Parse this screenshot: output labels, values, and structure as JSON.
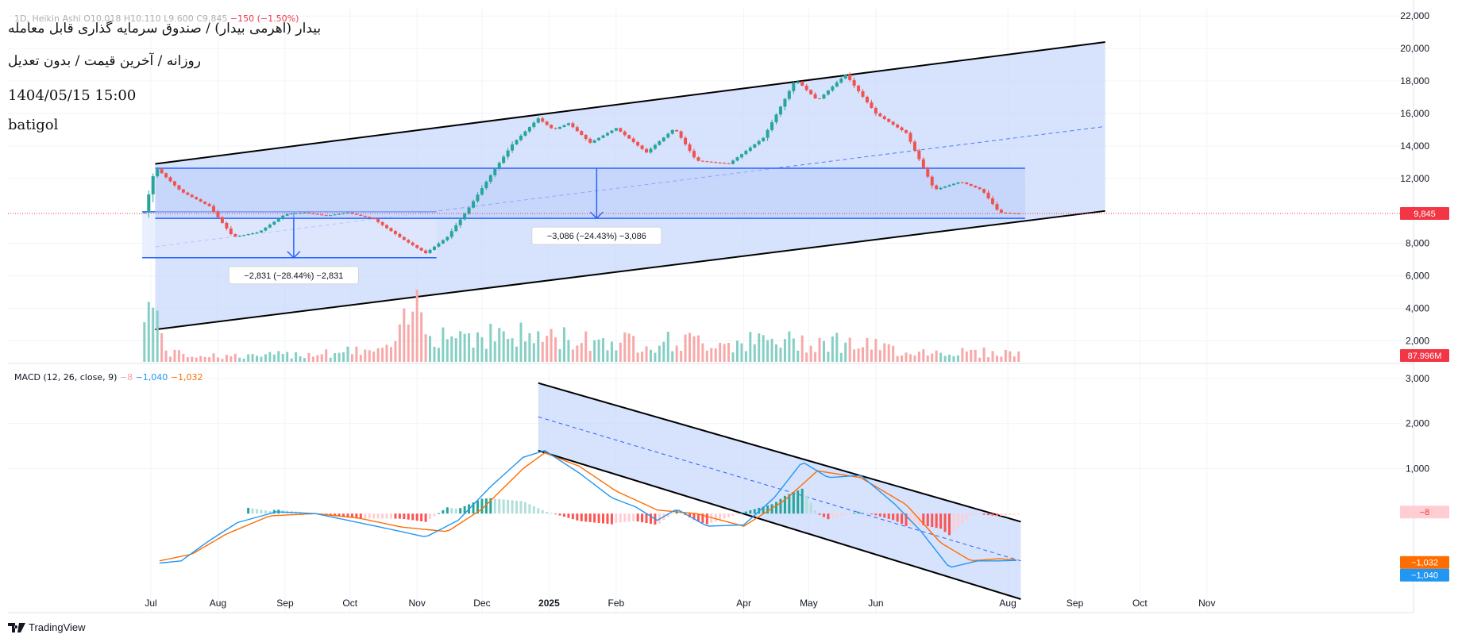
{
  "header": {
    "instrument_name": "بیدار (اهرمی بیدار) / صندوق سرمایه گذاری قابل معامله",
    "subtitle": "روزانه / آخرین قیمت / بدون تعدیل",
    "datetime": "1404/05/15 15:00",
    "username": "batigol",
    "ohlc_legend": "1D, Heikin Ashi  O10.018  H10.110  L9.600  C9.845",
    "change_text": "−150 (−1.50%)"
  },
  "macd_legend": {
    "label": "MACD (12, 26, close, 9)",
    "histogram_value": "−8",
    "macd_value": "−1,040",
    "signal_value": "−1,032"
  },
  "branding": {
    "name": "TradingView"
  },
  "colors": {
    "up": "#26a69a",
    "down": "#ef5350",
    "vol_up": "#86cfc4",
    "vol_down": "#f7a9a9",
    "macd": "#2196f3",
    "signal": "#ff6d00",
    "channel_fill": "#c9d8fb",
    "measure": "#2962ff",
    "price_label": "#f23645"
  },
  "chart_data": [
    {
      "type": "candlestick",
      "style": "Heikin Ashi",
      "timeframe": "1D",
      "x_tick_labels": [
        "Jul",
        "Aug",
        "Sep",
        "Oct",
        "Nov",
        "Dec",
        "2025",
        "Feb",
        "Apr",
        "May",
        "Jun",
        "Aug",
        "Sep",
        "Oct",
        "Nov"
      ],
      "y_tick_labels": [
        "22,000",
        "20,000",
        "18,000",
        "16,000",
        "14,000",
        "12,000",
        "8,000",
        "6,000",
        "4,000",
        "2,000"
      ],
      "ylim": [
        1000,
        22500
      ],
      "last_price": 9845,
      "last_price_label": "9,845",
      "volume_label": "87.996M",
      "grid": true,
      "price_path": [
        [
          "2024-06-28",
          9900
        ],
        [
          "2024-07-03",
          12700
        ],
        [
          "2024-07-15",
          11200
        ],
        [
          "2024-07-28",
          10300
        ],
        [
          "2024-08-08",
          8400
        ],
        [
          "2024-08-20",
          8700
        ],
        [
          "2024-09-01",
          9800
        ],
        [
          "2024-09-10",
          9900
        ],
        [
          "2024-09-20",
          9700
        ],
        [
          "2024-09-30",
          9900
        ],
        [
          "2024-10-12",
          9500
        ],
        [
          "2024-10-25",
          8300
        ],
        [
          "2024-11-05",
          7400
        ],
        [
          "2024-11-15",
          8400
        ],
        [
          "2024-11-25",
          10200
        ],
        [
          "2024-12-05",
          12200
        ],
        [
          "2024-12-15",
          14100
        ],
        [
          "2024-12-27",
          15700
        ],
        [
          "2025-01-03",
          15000
        ],
        [
          "2025-01-10",
          15400
        ],
        [
          "2025-01-20",
          14200
        ],
        [
          "2025-02-01",
          15100
        ],
        [
          "2025-02-15",
          13600
        ],
        [
          "2025-02-28",
          15100
        ],
        [
          "2025-03-10",
          13100
        ],
        [
          "2025-03-25",
          12900
        ],
        [
          "2025-04-10",
          14500
        ],
        [
          "2025-04-25",
          18100
        ],
        [
          "2025-05-05",
          16800
        ],
        [
          "2025-05-18",
          18400
        ],
        [
          "2025-06-01",
          16000
        ],
        [
          "2025-06-15",
          14800
        ],
        [
          "2025-06-28",
          11300
        ],
        [
          "2025-07-10",
          11800
        ],
        [
          "2025-07-20",
          11300
        ],
        [
          "2025-07-28",
          9900
        ],
        [
          "2025-08-05",
          9845
        ]
      ],
      "annotations": {
        "channel_upper": [
          [
            "2024-07-03",
            12900
          ],
          [
            "2025-09-15",
            20400
          ]
        ],
        "channel_lower": [
          [
            "2024-07-03",
            2700
          ],
          [
            "2025-09-15",
            10000
          ]
        ],
        "channel_midline": [
          [
            "2024-07-03",
            7800
          ],
          [
            "2025-09-15",
            15200
          ]
        ],
        "measure_1": {
          "start_price": 9950,
          "end_price": 7119,
          "text": "−2,831 (−28.44%) −2,831"
        },
        "measure_2": {
          "start_price": 12631,
          "end_price": 9545,
          "text": "−3,086 (−24.43%) −3,086"
        }
      }
    },
    {
      "type": "bar",
      "series": [
        {
          "name": "Volume"
        }
      ],
      "volume_path": [
        [
          "2024-06-28",
          5200
        ],
        [
          "2024-07-10",
          600
        ],
        [
          "2024-08-15",
          400
        ],
        [
          "2024-09-20",
          700
        ],
        [
          "2024-10-20",
          900
        ],
        [
          "2024-11-01",
          4300
        ],
        [
          "2024-11-10",
          2200
        ],
        [
          "2024-12-10",
          2000
        ],
        [
          "2025-01-01",
          1800
        ],
        [
          "2025-02-10",
          1500
        ],
        [
          "2025-03-20",
          1500
        ],
        [
          "2025-04-20",
          1500
        ],
        [
          "2025-05-10",
          1600
        ],
        [
          "2025-06-15",
          800
        ],
        [
          "2025-07-20",
          700
        ],
        [
          "2025-08-05",
          650
        ]
      ]
    },
    {
      "type": "line",
      "y_tick_labels": [
        "3,000",
        "2,000",
        "1,000"
      ],
      "ylim": [
        -2200,
        3300
      ],
      "series": [
        {
          "name": "MACD",
          "path": [
            [
              "2024-07-05",
              -1100
            ],
            [
              "2024-07-15",
              -1050
            ],
            [
              "2024-07-28",
              -600
            ],
            [
              "2024-08-10",
              -200
            ],
            [
              "2024-08-28",
              40
            ],
            [
              "2024-09-15",
              0
            ],
            [
              "2024-09-30",
              -150
            ],
            [
              "2024-10-20",
              -350
            ],
            [
              "2024-11-05",
              -520
            ],
            [
              "2024-11-20",
              -150
            ],
            [
              "2024-12-05",
              600
            ],
            [
              "2024-12-20",
              1250
            ],
            [
              "2024-12-30",
              1400
            ],
            [
              "2025-01-15",
              900
            ],
            [
              "2025-01-30",
              350
            ],
            [
              "2025-02-10",
              150
            ],
            [
              "2025-02-20",
              -150
            ],
            [
              "2025-03-01",
              100
            ],
            [
              "2025-03-15",
              -280
            ],
            [
              "2025-04-01",
              -250
            ],
            [
              "2025-04-15",
              350
            ],
            [
              "2025-04-28",
              1150
            ],
            [
              "2025-05-10",
              800
            ],
            [
              "2025-05-25",
              850
            ],
            [
              "2025-06-10",
              200
            ],
            [
              "2025-06-22",
              -400
            ],
            [
              "2025-07-05",
              -1200
            ],
            [
              "2025-07-18",
              -1050
            ],
            [
              "2025-07-28",
              -1050
            ],
            [
              "2025-08-05",
              -1040
            ]
          ]
        },
        {
          "name": "Signal",
          "path": [
            [
              "2024-07-05",
              -1050
            ],
            [
              "2024-07-20",
              -900
            ],
            [
              "2024-08-05",
              -450
            ],
            [
              "2024-08-25",
              -50
            ],
            [
              "2024-09-15",
              0
            ],
            [
              "2024-10-05",
              -100
            ],
            [
              "2024-10-25",
              -300
            ],
            [
              "2024-11-15",
              -400
            ],
            [
              "2024-12-01",
              100
            ],
            [
              "2024-12-20",
              1000
            ],
            [
              "2024-12-30",
              1350
            ],
            [
              "2025-01-15",
              1050
            ],
            [
              "2025-02-01",
              500
            ],
            [
              "2025-02-20",
              80
            ],
            [
              "2025-03-10",
              0
            ],
            [
              "2025-04-01",
              -280
            ],
            [
              "2025-04-20",
              300
            ],
            [
              "2025-05-05",
              950
            ],
            [
              "2025-05-25",
              800
            ],
            [
              "2025-06-15",
              200
            ],
            [
              "2025-07-01",
              -650
            ],
            [
              "2025-07-15",
              -1050
            ],
            [
              "2025-07-28",
              -1000
            ],
            [
              "2025-08-05",
              -1032
            ]
          ]
        }
      ],
      "histogram_label": "−8",
      "signal_label": "−1,032",
      "macd_label": "−1,040",
      "annotations": {
        "channel_upper": [
          [
            "2024-12-27",
            2900
          ],
          [
            "2025-08-07",
            -180
          ]
        ],
        "channel_lower": [
          [
            "2024-12-27",
            1400
          ],
          [
            "2025-08-07",
            -1900
          ]
        ],
        "channel_midline": [
          [
            "2024-12-27",
            2150
          ],
          [
            "2025-08-07",
            -1050
          ]
        ]
      }
    }
  ]
}
